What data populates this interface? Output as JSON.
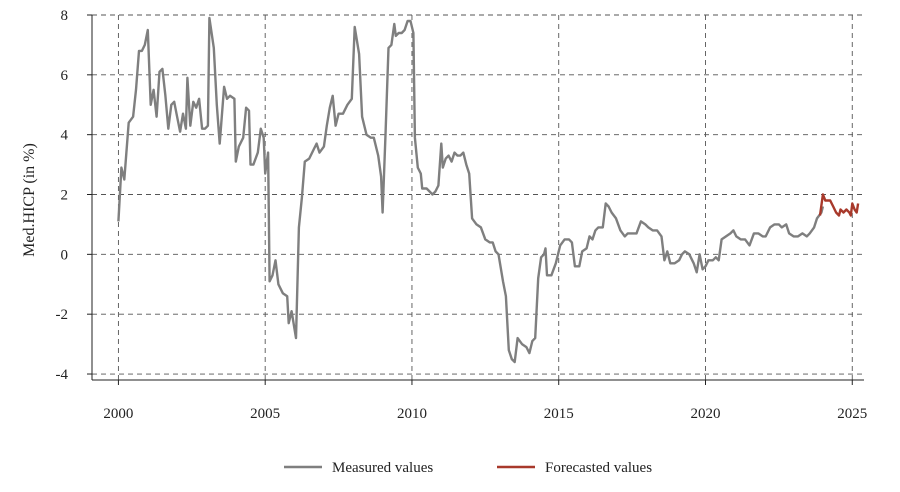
{
  "chart_data": {
    "type": "line",
    "title": "",
    "xlabel": "",
    "ylabel": "Med.HICP (in %)",
    "xlim": [
      1999.1,
      2025.4
    ],
    "ylim": [
      -4.2,
      8
    ],
    "x_ticks": [
      "2000",
      "2005",
      "2010",
      "2015",
      "2020",
      "2025"
    ],
    "y_ticks": [
      "8",
      "6",
      "4",
      "2",
      "0",
      "-2",
      "-4"
    ],
    "grid": true,
    "legend_position": "bottom",
    "series": [
      {
        "name": "Measured values",
        "color": "#7f7f7f",
        "points": [
          [
            2000.0,
            1.1
          ],
          [
            2000.1,
            2.9
          ],
          [
            2000.2,
            2.5
          ],
          [
            2000.35,
            4.4
          ],
          [
            2000.5,
            4.6
          ],
          [
            2000.6,
            5.5
          ],
          [
            2000.7,
            6.8
          ],
          [
            2000.8,
            6.8
          ],
          [
            2000.9,
            7.0
          ],
          [
            2001.0,
            7.5
          ],
          [
            2001.1,
            5.0
          ],
          [
            2001.2,
            5.5
          ],
          [
            2001.3,
            4.6
          ],
          [
            2001.4,
            6.1
          ],
          [
            2001.5,
            6.2
          ],
          [
            2001.6,
            5.3
          ],
          [
            2001.7,
            4.2
          ],
          [
            2001.8,
            5.0
          ],
          [
            2001.9,
            5.1
          ],
          [
            2002.0,
            4.6
          ],
          [
            2002.1,
            4.1
          ],
          [
            2002.2,
            4.7
          ],
          [
            2002.3,
            4.2
          ],
          [
            2002.35,
            5.9
          ],
          [
            2002.45,
            4.3
          ],
          [
            2002.55,
            5.1
          ],
          [
            2002.65,
            4.9
          ],
          [
            2002.75,
            5.2
          ],
          [
            2002.85,
            4.2
          ],
          [
            2002.95,
            4.2
          ],
          [
            2003.05,
            4.3
          ],
          [
            2003.1,
            7.9
          ],
          [
            2003.25,
            6.9
          ],
          [
            2003.35,
            5.0
          ],
          [
            2003.45,
            3.7
          ],
          [
            2003.6,
            5.6
          ],
          [
            2003.7,
            5.2
          ],
          [
            2003.8,
            5.3
          ],
          [
            2003.95,
            5.2
          ],
          [
            2004.0,
            3.1
          ],
          [
            2004.1,
            3.6
          ],
          [
            2004.25,
            3.9
          ],
          [
            2004.35,
            4.9
          ],
          [
            2004.45,
            4.8
          ],
          [
            2004.5,
            3.0
          ],
          [
            2004.6,
            3.0
          ],
          [
            2004.75,
            3.4
          ],
          [
            2004.85,
            4.2
          ],
          [
            2004.95,
            3.9
          ],
          [
            2005.0,
            2.7
          ],
          [
            2005.1,
            3.4
          ],
          [
            2005.15,
            -0.9
          ],
          [
            2005.25,
            -0.7
          ],
          [
            2005.35,
            -0.2
          ],
          [
            2005.45,
            -1.0
          ],
          [
            2005.6,
            -1.3
          ],
          [
            2005.75,
            -1.4
          ],
          [
            2005.8,
            -2.3
          ],
          [
            2005.9,
            -1.9
          ],
          [
            2006.05,
            -2.8
          ],
          [
            2006.15,
            0.9
          ],
          [
            2006.25,
            1.9
          ],
          [
            2006.35,
            3.1
          ],
          [
            2006.5,
            3.2
          ],
          [
            2006.65,
            3.5
          ],
          [
            2006.75,
            3.7
          ],
          [
            2006.85,
            3.4
          ],
          [
            2007.0,
            3.6
          ],
          [
            2007.1,
            4.3
          ],
          [
            2007.2,
            4.9
          ],
          [
            2007.3,
            5.3
          ],
          [
            2007.4,
            4.3
          ],
          [
            2007.5,
            4.7
          ],
          [
            2007.65,
            4.7
          ],
          [
            2007.8,
            5.0
          ],
          [
            2007.95,
            5.2
          ],
          [
            2008.05,
            7.6
          ],
          [
            2008.2,
            6.7
          ],
          [
            2008.3,
            4.6
          ],
          [
            2008.45,
            4.0
          ],
          [
            2008.6,
            3.9
          ],
          [
            2008.7,
            3.9
          ],
          [
            2008.85,
            3.3
          ],
          [
            2008.95,
            2.6
          ],
          [
            2009.0,
            1.4
          ],
          [
            2009.1,
            4.0
          ],
          [
            2009.2,
            6.9
          ],
          [
            2009.3,
            7.0
          ],
          [
            2009.4,
            7.7
          ],
          [
            2009.45,
            7.3
          ],
          [
            2009.55,
            7.4
          ],
          [
            2009.65,
            7.4
          ],
          [
            2009.75,
            7.5
          ],
          [
            2009.85,
            7.8
          ],
          [
            2009.95,
            7.8
          ],
          [
            2010.05,
            7.4
          ],
          [
            2010.1,
            3.9
          ],
          [
            2010.2,
            2.9
          ],
          [
            2010.3,
            2.7
          ],
          [
            2010.35,
            2.2
          ],
          [
            2010.5,
            2.2
          ],
          [
            2010.6,
            2.1
          ],
          [
            2010.7,
            2.0
          ],
          [
            2010.8,
            2.1
          ],
          [
            2010.9,
            2.3
          ],
          [
            2011.0,
            3.7
          ],
          [
            2011.05,
            2.9
          ],
          [
            2011.15,
            3.2
          ],
          [
            2011.25,
            3.3
          ],
          [
            2011.35,
            3.1
          ],
          [
            2011.45,
            3.4
          ],
          [
            2011.55,
            3.3
          ],
          [
            2011.65,
            3.3
          ],
          [
            2011.75,
            3.4
          ],
          [
            2011.85,
            3.0
          ],
          [
            2011.95,
            2.7
          ],
          [
            2012.05,
            1.2
          ],
          [
            2012.2,
            1.0
          ],
          [
            2012.35,
            0.9
          ],
          [
            2012.5,
            0.5
          ],
          [
            2012.65,
            0.4
          ],
          [
            2012.75,
            0.4
          ],
          [
            2012.85,
            0.1
          ],
          [
            2012.95,
            0.0
          ],
          [
            2013.1,
            -0.9
          ],
          [
            2013.2,
            -1.4
          ],
          [
            2013.3,
            -3.2
          ],
          [
            2013.4,
            -3.5
          ],
          [
            2013.5,
            -3.6
          ],
          [
            2013.6,
            -2.8
          ],
          [
            2013.75,
            -3.0
          ],
          [
            2013.9,
            -3.1
          ],
          [
            2014.0,
            -3.3
          ],
          [
            2014.1,
            -2.9
          ],
          [
            2014.2,
            -2.8
          ],
          [
            2014.3,
            -0.8
          ],
          [
            2014.4,
            -0.1
          ],
          [
            2014.5,
            0.0
          ],
          [
            2014.55,
            0.2
          ],
          [
            2014.6,
            -0.7
          ],
          [
            2014.75,
            -0.7
          ],
          [
            2014.9,
            -0.3
          ],
          [
            2015.05,
            0.3
          ],
          [
            2015.2,
            0.5
          ],
          [
            2015.35,
            0.5
          ],
          [
            2015.45,
            0.4
          ],
          [
            2015.55,
            -0.4
          ],
          [
            2015.7,
            -0.4
          ],
          [
            2015.8,
            0.1
          ],
          [
            2015.95,
            0.2
          ],
          [
            2016.05,
            0.6
          ],
          [
            2016.15,
            0.5
          ],
          [
            2016.25,
            0.8
          ],
          [
            2016.35,
            0.9
          ],
          [
            2016.5,
            0.9
          ],
          [
            2016.6,
            1.7
          ],
          [
            2016.7,
            1.6
          ],
          [
            2016.8,
            1.4
          ],
          [
            2016.95,
            1.2
          ],
          [
            2017.1,
            0.8
          ],
          [
            2017.25,
            0.6
          ],
          [
            2017.35,
            0.7
          ],
          [
            2017.5,
            0.7
          ],
          [
            2017.65,
            0.7
          ],
          [
            2017.8,
            1.1
          ],
          [
            2017.95,
            1.0
          ],
          [
            2018.05,
            0.9
          ],
          [
            2018.2,
            0.8
          ],
          [
            2018.35,
            0.8
          ],
          [
            2018.5,
            0.6
          ],
          [
            2018.6,
            -0.2
          ],
          [
            2018.7,
            0.1
          ],
          [
            2018.8,
            -0.3
          ],
          [
            2018.95,
            -0.3
          ],
          [
            2019.1,
            -0.2
          ],
          [
            2019.2,
            0.0
          ],
          [
            2019.3,
            0.1
          ],
          [
            2019.45,
            0.0
          ],
          [
            2019.6,
            -0.3
          ],
          [
            2019.7,
            -0.6
          ],
          [
            2019.8,
            0.0
          ],
          [
            2019.9,
            -0.5
          ],
          [
            2020.0,
            -0.4
          ],
          [
            2020.1,
            -0.2
          ],
          [
            2020.25,
            -0.2
          ],
          [
            2020.35,
            -0.1
          ],
          [
            2020.45,
            -0.2
          ],
          [
            2020.55,
            0.5
          ],
          [
            2020.7,
            0.6
          ],
          [
            2020.85,
            0.7
          ],
          [
            2020.95,
            0.8
          ],
          [
            2021.05,
            0.6
          ],
          [
            2021.2,
            0.5
          ],
          [
            2021.35,
            0.5
          ],
          [
            2021.5,
            0.3
          ],
          [
            2021.65,
            0.7
          ],
          [
            2021.8,
            0.7
          ],
          [
            2021.95,
            0.6
          ],
          [
            2022.05,
            0.6
          ],
          [
            2022.2,
            0.9
          ],
          [
            2022.35,
            1.0
          ],
          [
            2022.5,
            1.0
          ],
          [
            2022.6,
            0.9
          ],
          [
            2022.75,
            1.0
          ],
          [
            2022.85,
            0.7
          ],
          [
            2023.0,
            0.6
          ],
          [
            2023.15,
            0.6
          ],
          [
            2023.3,
            0.7
          ],
          [
            2023.45,
            0.6
          ],
          [
            2023.55,
            0.7
          ],
          [
            2023.7,
            0.9
          ],
          [
            2023.8,
            1.2
          ],
          [
            2023.95,
            1.4
          ],
          [
            2024.0,
            1.6
          ]
        ]
      },
      {
        "name": "Forecasted values",
        "color": "#a8392b",
        "points": [
          [
            2023.9,
            1.3
          ],
          [
            2024.0,
            2.0
          ],
          [
            2024.08,
            1.8
          ],
          [
            2024.15,
            1.8
          ],
          [
            2024.25,
            1.8
          ],
          [
            2024.35,
            1.6
          ],
          [
            2024.45,
            1.4
          ],
          [
            2024.55,
            1.3
          ],
          [
            2024.6,
            1.5
          ],
          [
            2024.7,
            1.4
          ],
          [
            2024.8,
            1.5
          ],
          [
            2024.9,
            1.4
          ],
          [
            2024.95,
            1.3
          ],
          [
            2025.0,
            1.7
          ],
          [
            2025.08,
            1.5
          ],
          [
            2025.15,
            1.4
          ],
          [
            2025.2,
            1.7
          ]
        ]
      }
    ]
  }
}
